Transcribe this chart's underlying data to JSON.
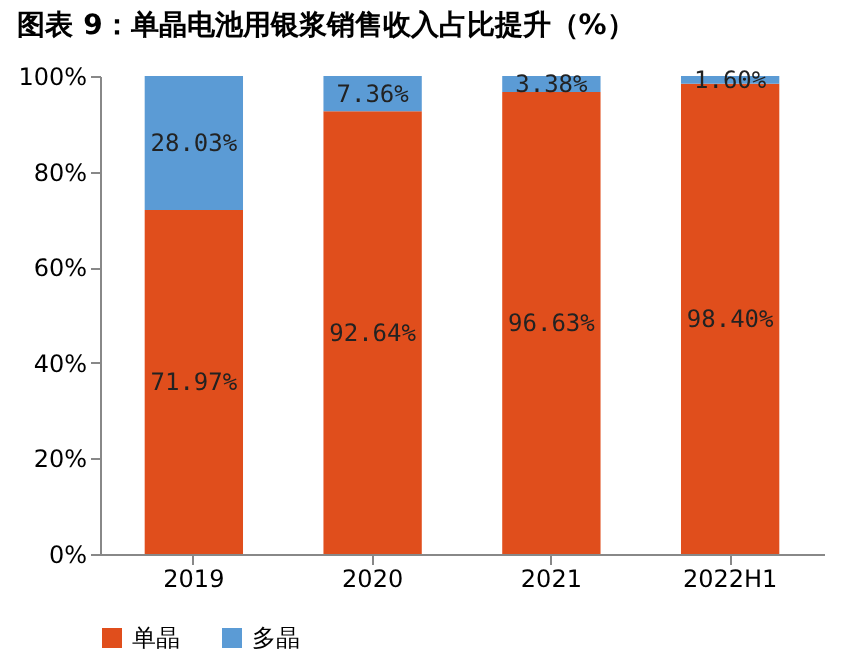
{
  "chart_data": {
    "type": "bar",
    "title": "图表 9：单晶电池用银浆销售收入占比提升（%）",
    "categories": [
      "2019",
      "2020",
      "2021",
      "2022H1"
    ],
    "stacked": true,
    "series": [
      {
        "name": "单晶",
        "color": "#e04e1c",
        "values": [
          71.97,
          92.64,
          96.63,
          98.4
        ],
        "value_labels": [
          "71.97%",
          "92.64%",
          "96.63%",
          "98.40%"
        ]
      },
      {
        "name": "多晶",
        "color": "#5b9bd5",
        "values": [
          28.03,
          7.36,
          3.38,
          1.6
        ],
        "value_labels": [
          "28.03%",
          "7.36%",
          "3.38%",
          "1.60%"
        ]
      }
    ],
    "ylim": [
      0,
      100
    ],
    "yticks": [
      {
        "value": 0,
        "label": "0%"
      },
      {
        "value": 20,
        "label": "20%"
      },
      {
        "value": 40,
        "label": "40%"
      },
      {
        "value": 60,
        "label": "60%"
      },
      {
        "value": 80,
        "label": "80%"
      },
      {
        "value": 100,
        "label": "100%"
      }
    ],
    "grid": false,
    "legend": "bottom"
  }
}
